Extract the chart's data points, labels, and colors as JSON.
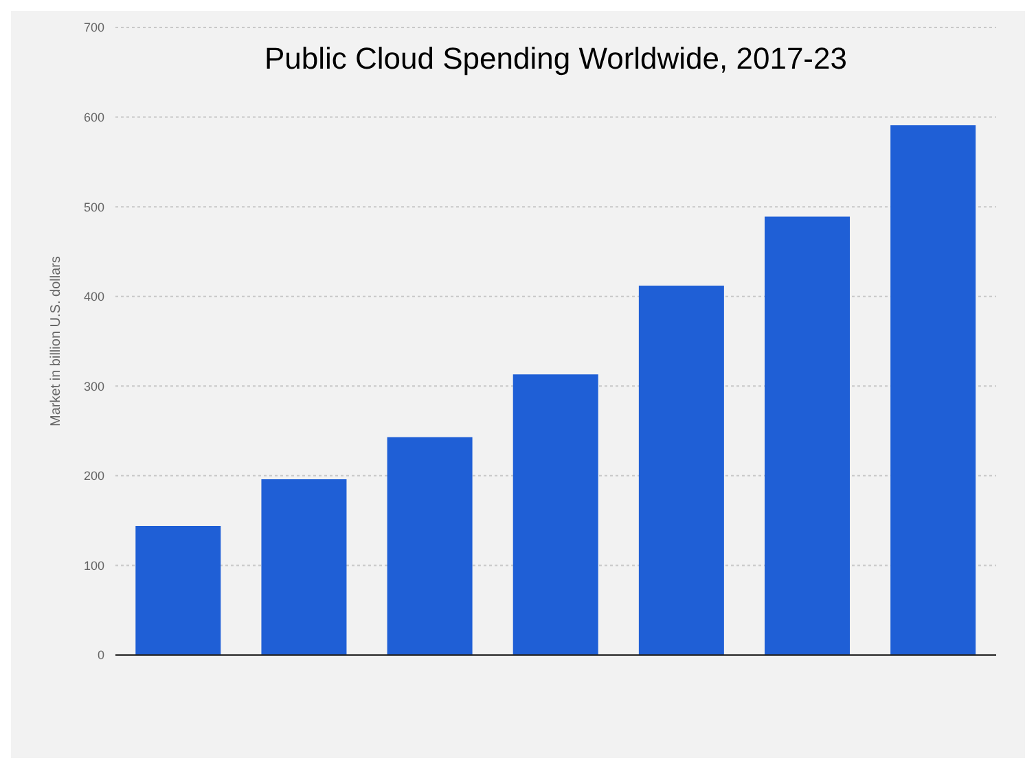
{
  "chart_data": {
    "type": "bar",
    "title": "Public Cloud Spending Worldwide, 2017-23",
    "ylabel": "Market in billion U.S. dollars",
    "categories": [
      null,
      null,
      null,
      null,
      null,
      null,
      null
    ],
    "values": [
      144,
      196,
      243,
      313,
      412,
      489,
      591
    ],
    "color": "#1f5fd6",
    "ylim": [
      0,
      700
    ],
    "yticks": [
      0,
      100,
      200,
      300,
      400,
      500,
      600,
      700
    ],
    "grid": "y"
  }
}
